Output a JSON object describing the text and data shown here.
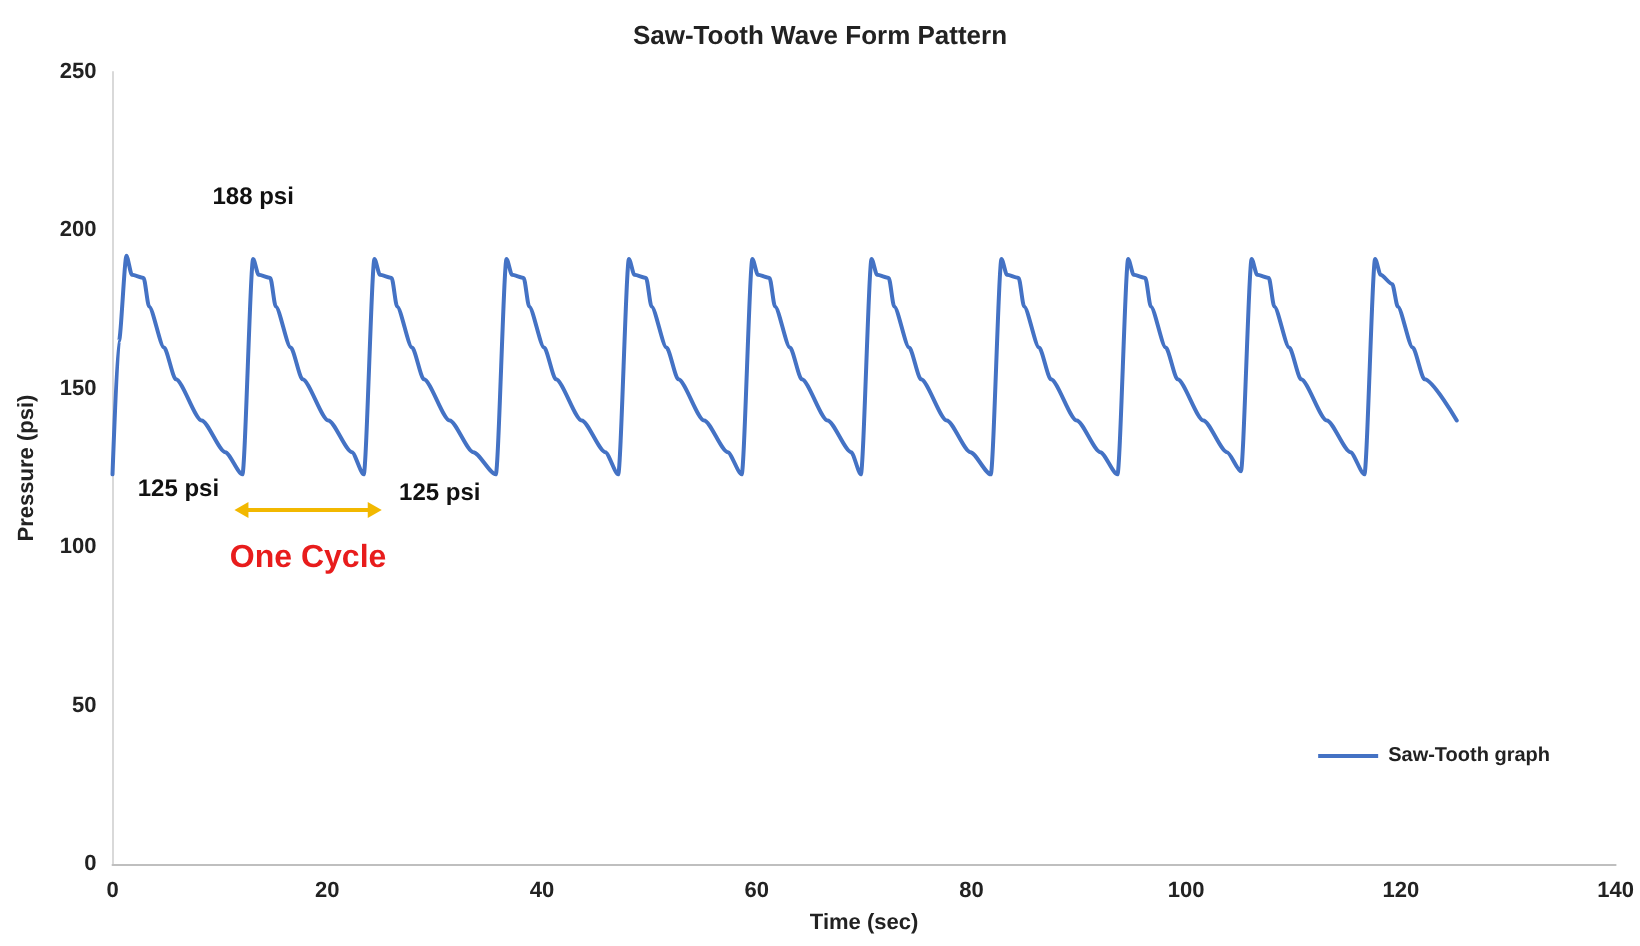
{
  "chart_data": {
    "type": "line",
    "title": "Saw-Tooth Wave Form Pattern",
    "xlabel": "Time (sec)",
    "ylabel": "Pressure (psi)",
    "xlim": [
      0,
      140
    ],
    "xticks": [
      0,
      20,
      40,
      60,
      80,
      100,
      120,
      140
    ],
    "ylim": [
      0,
      250
    ],
    "yticks": [
      0,
      50,
      100,
      150,
      200,
      250
    ],
    "grid": false,
    "legend": "bottom right",
    "marker": "none",
    "line_style": "solid",
    "series": [
      {
        "name": "Saw-Tooth graph",
        "color": "#4472c4",
        "x": [
          0,
          0.6,
          1.3,
          1.8,
          2.9,
          3.4,
          4.8,
          5.9,
          8.3,
          10.5,
          12.1,
          13.1,
          13.6,
          14.7,
          15.2,
          16.6,
          17.7,
          20.1,
          22.3,
          23.4,
          24.4,
          24.9,
          26.0,
          26.5,
          27.9,
          29.0,
          31.4,
          33.6,
          35.7,
          36.7,
          37.2,
          38.3,
          38.8,
          40.2,
          41.3,
          43.7,
          45.9,
          47.1,
          48.1,
          48.6,
          49.7,
          50.2,
          51.6,
          52.7,
          55.1,
          57.3,
          58.6,
          59.6,
          60.1,
          61.2,
          61.7,
          63.1,
          64.2,
          66.6,
          68.8,
          69.7,
          70.7,
          71.2,
          72.3,
          72.8,
          74.2,
          75.3,
          77.7,
          79.9,
          81.8,
          82.8,
          83.3,
          84.4,
          84.9,
          86.3,
          87.4,
          89.8,
          92.0,
          93.6,
          94.6,
          95.1,
          96.2,
          96.7,
          98.1,
          99.2,
          101.6,
          103.8,
          105.1,
          106.1,
          106.6,
          107.7,
          108.2,
          109.6,
          110.7,
          113.1,
          115.3,
          116.6,
          117.6,
          118.1,
          119.2,
          119.7,
          121.1,
          122.2,
          125.2
        ],
        "values": [
          123,
          165,
          192,
          186,
          185,
          176,
          163,
          153,
          140,
          130,
          123,
          191,
          186,
          185,
          176,
          163,
          153,
          140,
          130,
          123,
          191,
          186,
          185,
          176,
          163,
          153,
          140,
          130,
          123,
          191,
          186,
          185,
          176,
          163,
          153,
          140,
          130,
          123,
          191,
          186,
          185,
          176,
          163,
          153,
          140,
          130,
          123,
          191,
          186,
          185,
          176,
          163,
          153,
          140,
          130,
          123,
          191,
          186,
          185,
          176,
          163,
          153,
          140,
          130,
          123,
          191,
          186,
          185,
          176,
          163,
          153,
          140,
          130,
          123,
          191,
          186,
          185,
          176,
          163,
          153,
          140,
          130,
          124,
          191,
          186,
          185,
          176,
          163,
          153,
          140,
          130,
          123,
          191,
          186,
          183,
          176,
          163,
          153,
          140
        ]
      }
    ],
    "annotations": [
      {
        "text": "188 psi",
        "x": 13.1,
        "y": 188
      },
      {
        "text": "125 psi",
        "x": 12.1,
        "y": 125
      },
      {
        "text": "125 psi",
        "x": 23.4,
        "y": 125
      },
      "One Cycle"
    ]
  }
}
